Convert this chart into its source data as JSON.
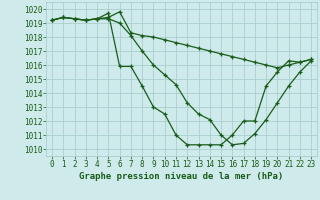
{
  "title": "Graphe pression niveau de la mer (hPa)",
  "bg_color": "#ceeaea",
  "grid_color": "#aacece",
  "line_color": "#1a5c1a",
  "xlim": [
    -0.5,
    23.5
  ],
  "ylim": [
    1009.5,
    1020.5
  ],
  "yticks": [
    1010,
    1011,
    1012,
    1013,
    1014,
    1015,
    1016,
    1017,
    1018,
    1019,
    1020
  ],
  "xticks": [
    0,
    1,
    2,
    3,
    4,
    5,
    6,
    7,
    8,
    9,
    10,
    11,
    12,
    13,
    14,
    15,
    16,
    17,
    18,
    19,
    20,
    21,
    22,
    23
  ],
  "series": [
    [
      1019.2,
      1019.4,
      1019.3,
      1019.2,
      1019.3,
      1019.4,
      1019.8,
      1018.3,
      1018.1,
      1018.0,
      1017.8,
      1017.6,
      1017.4,
      1017.2,
      1017.0,
      1016.8,
      1016.6,
      1016.4,
      1016.2,
      1016.0,
      1015.8,
      1016.0,
      1016.2,
      1016.4
    ],
    [
      1019.2,
      1019.4,
      1019.3,
      1019.2,
      1019.3,
      1019.3,
      1019.0,
      1018.1,
      1017.0,
      1016.0,
      1015.3,
      1014.6,
      1013.3,
      1012.5,
      1012.1,
      1011.0,
      1010.3,
      1010.4,
      1011.1,
      1012.1,
      1013.3,
      1014.5,
      1015.5,
      1016.3
    ],
    [
      1019.2,
      1019.4,
      1019.3,
      1019.2,
      1019.3,
      1019.7,
      1015.9,
      1015.9,
      1014.5,
      1013.0,
      1012.5,
      1011.0,
      1010.3,
      1010.3,
      1010.3,
      1010.3,
      1011.0,
      1012.0,
      1012.0,
      1014.5,
      1015.5,
      1016.3,
      1016.2,
      1016.4
    ]
  ],
  "ylabel_fontsize": 5.5,
  "xlabel_fontsize": 6.5,
  "tick_fontsize": 5.5,
  "linewidth": 0.9,
  "markersize": 3.0
}
